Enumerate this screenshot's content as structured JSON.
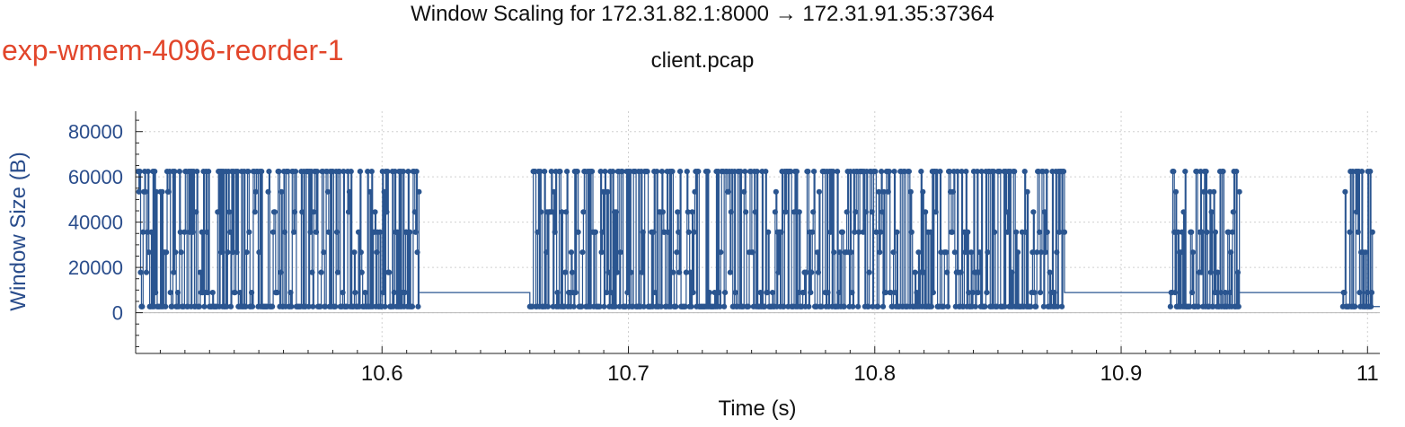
{
  "page": {
    "title": "Window Scaling for 172.31.82.1:8000 → 172.31.91.35:37364",
    "subtitle": "client.pcap",
    "label": "exp-wmem-4096-reorder-1"
  },
  "colors": {
    "series": "#2a5590",
    "y_axis": "#2a4d8c",
    "label": "#e2462b",
    "grid": "#d0d0d0"
  },
  "chart_data": {
    "type": "line",
    "markers": true,
    "step": true,
    "title": "Window Scaling for 172.31.82.1:8000 → 172.31.91.35:37364",
    "subtitle": "client.pcap",
    "xlabel": "Time (s)",
    "ylabel": "Window Size (B)",
    "xlim": [
      10.5,
      11.005
    ],
    "ylim": [
      -18000,
      89000
    ],
    "xticks": [
      "10.6",
      "10.7",
      "10.8",
      "10.9",
      "11"
    ],
    "xtick_values": [
      10.6,
      10.7,
      10.8,
      10.9,
      11.0
    ],
    "yticks": [
      "0",
      "20000",
      "40000",
      "60000",
      "80000"
    ],
    "ytick_values": [
      0,
      20000,
      40000,
      60000,
      80000
    ],
    "grid": true,
    "baseline": 0,
    "levels": [
      2700,
      8900,
      17800,
      26700,
      35600,
      44500,
      53400,
      62400
    ],
    "bursts": [
      {
        "start": 10.501,
        "end": 10.615,
        "points": 340,
        "end_value": 53400
      },
      {
        "start": 10.66,
        "end": 10.877,
        "points": 620,
        "end_value": 35600
      },
      {
        "start": 10.92,
        "end": 10.948,
        "points": 90,
        "end_value": 53400
      },
      {
        "start": 10.99,
        "end": 11.002,
        "points": 40,
        "end_value": 35600
      }
    ],
    "gaps": [
      {
        "start": 10.615,
        "end": 10.66,
        "value": 8900
      },
      {
        "start": 10.877,
        "end": 10.92,
        "value": 8900
      },
      {
        "start": 10.948,
        "end": 10.99,
        "value": 8900
      },
      {
        "start": 11.002,
        "end": 11.005,
        "value": 2700
      }
    ]
  }
}
